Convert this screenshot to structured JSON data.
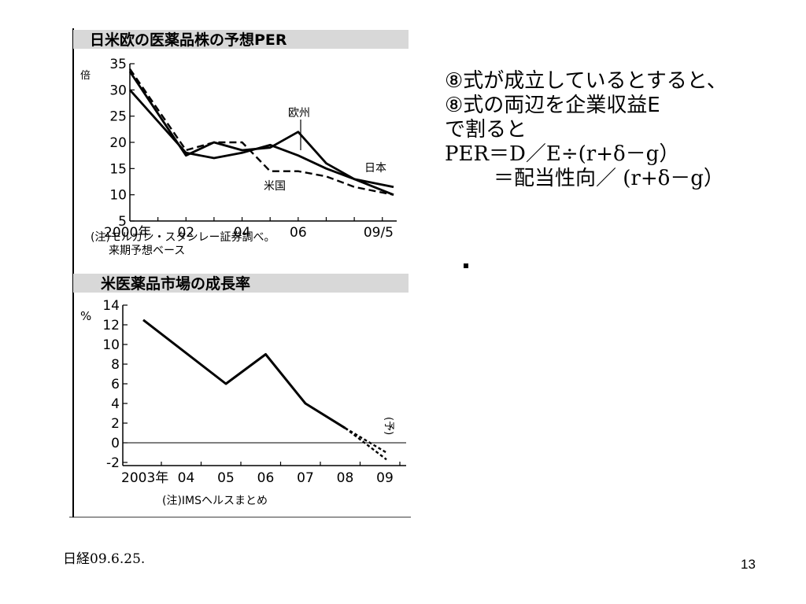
{
  "slide": {
    "eq_line1": "⑧式が成立しているとすると、",
    "eq_line2": "⑧式の両辺を企業収益E",
    "eq_line3": "で割ると",
    "eq_line4": "PER＝D／E÷(r+δ－g）",
    "eq_line5": "＝配当性向／ (r+δ－g）",
    "bullet": "・",
    "source": "日経09.6.25.",
    "page_number": "13"
  },
  "chart_data": [
    {
      "type": "line",
      "title": "日米欧の医薬品株の予想PER",
      "ylabel": "倍",
      "ylim": [
        5,
        35
      ],
      "yticks": [
        "35",
        "30",
        "25",
        "20",
        "15",
        "10",
        "5"
      ],
      "x_tick_labels": [
        "2000年",
        "02",
        "04",
        "06",
        "09/5"
      ],
      "x": [
        2000,
        2002,
        2003,
        2004,
        2005,
        2006,
        2007,
        2008,
        2009.4
      ],
      "series": [
        {
          "name": "日本",
          "style": "solid",
          "values": [
            30,
            18,
            17,
            18,
            19.5,
            17.5,
            15,
            13,
            11.5
          ]
        },
        {
          "name": "欧州",
          "style": "solid",
          "values": [
            33.5,
            17.5,
            20,
            18.5,
            19,
            22,
            16,
            13,
            10
          ]
        },
        {
          "name": "米国",
          "style": "dashed",
          "values": [
            34,
            18.5,
            20,
            20,
            14.5,
            14.5,
            13.5,
            11.5,
            10
          ]
        }
      ],
      "note_line1": "(注)モルガン・スタンレー証券調べ。",
      "note_line2": "来期予想ベース"
    },
    {
      "type": "line",
      "title": "米医薬品市場の成長率",
      "ylabel": "%",
      "ylim": [
        -2,
        14
      ],
      "yticks": [
        "14",
        "12",
        "10",
        "8",
        "6",
        "4",
        "2",
        "0",
        "-2"
      ],
      "categories": [
        "2003年",
        "04",
        "05",
        "06",
        "07",
        "08",
        "09"
      ],
      "series": [
        {
          "name": "",
          "style": "solid",
          "values": [
            12.5,
            null,
            6,
            9,
            4,
            1.5,
            null
          ]
        }
      ],
      "forecast": {
        "label": "(予)",
        "x": "09",
        "values": [
          -1,
          -1.7
        ]
      },
      "note": "(注)IMSヘルスまとめ"
    }
  ]
}
